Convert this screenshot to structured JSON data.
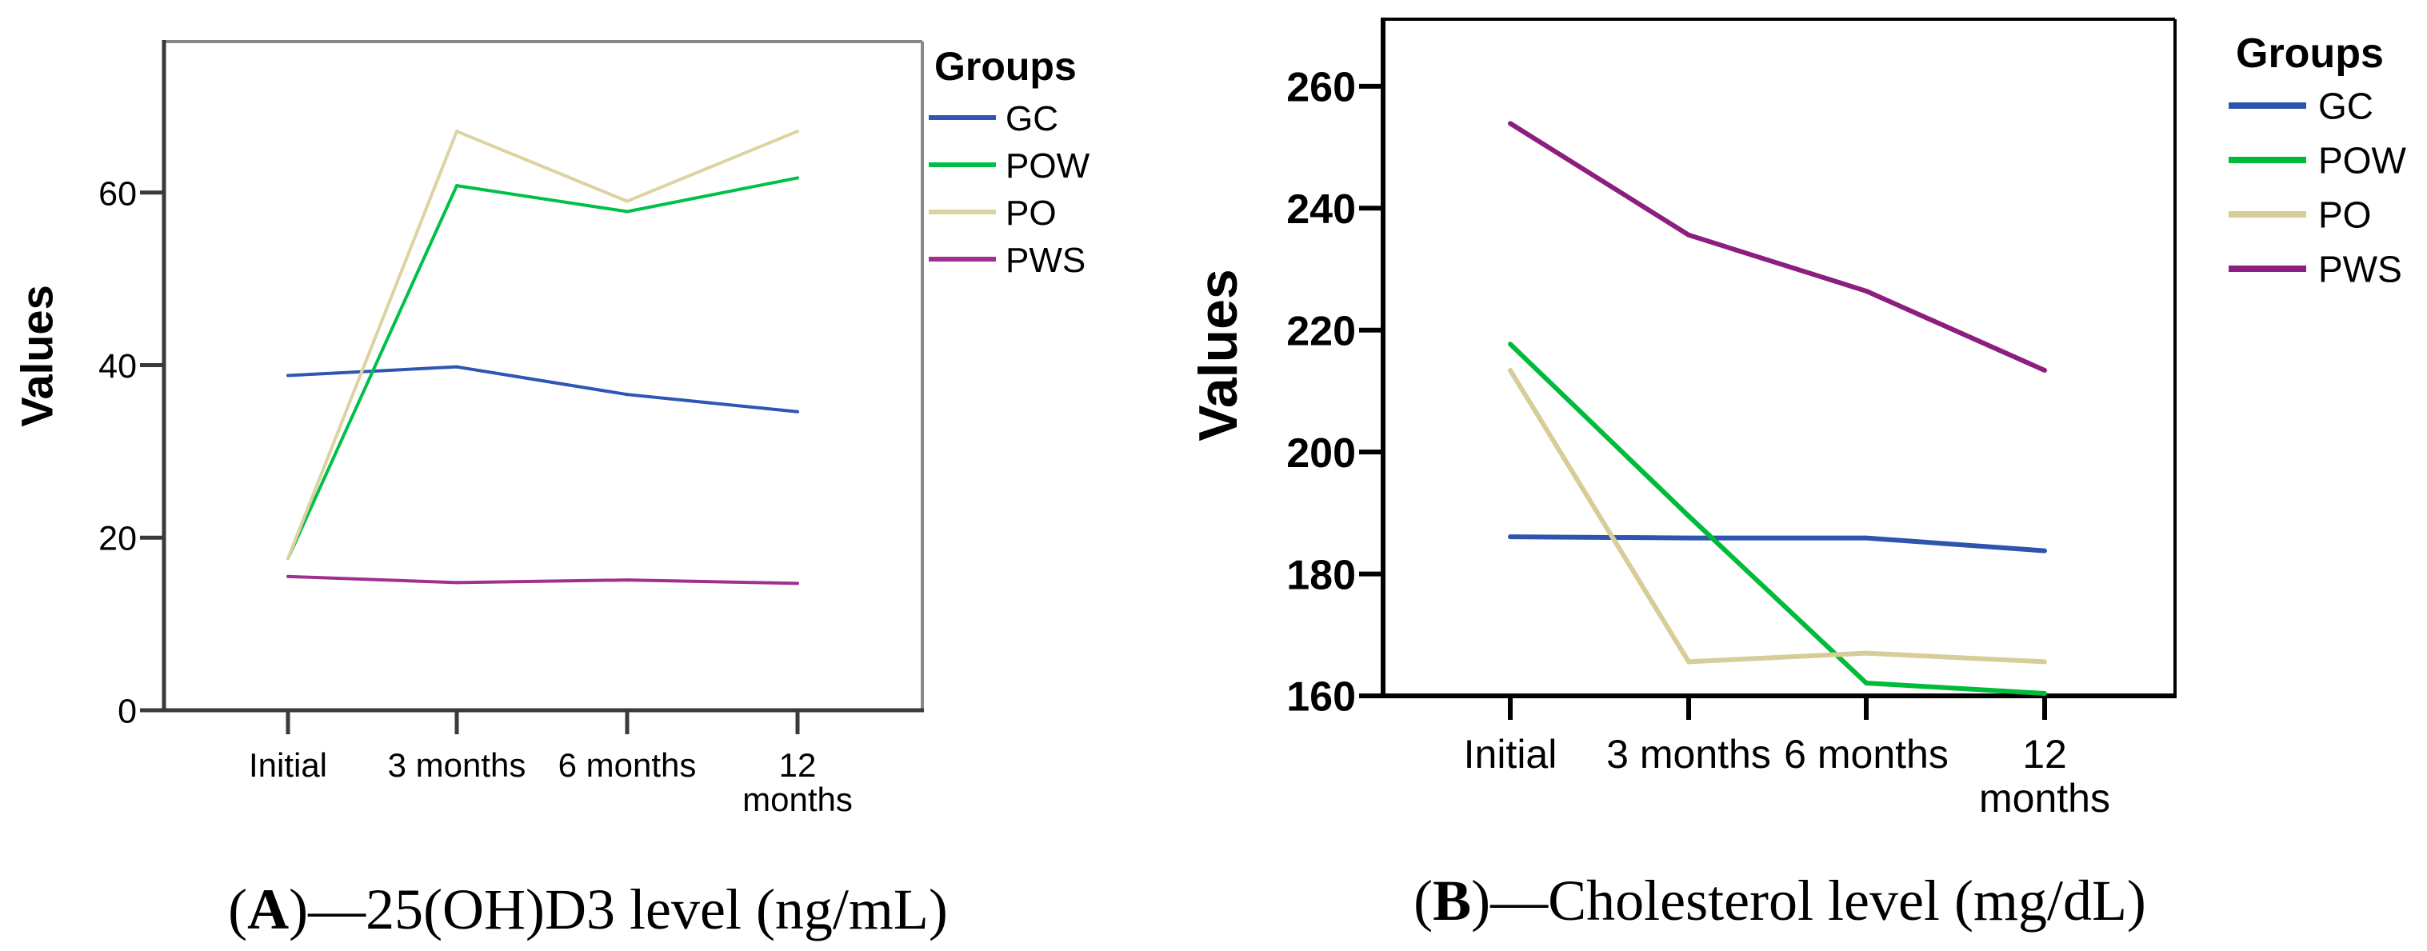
{
  "chart_data": [
    {
      "type": "line",
      "caption_letter": "A",
      "caption_text": "25(OH)D3 level (ng/mL)",
      "caption_dash": "—",
      "xlabel": "",
      "ylabel": "Values",
      "categories": [
        "Initial",
        "3 months",
        "6 months",
        "12 months"
      ],
      "category_lines": [
        [
          "Initial"
        ],
        [
          "3 months"
        ],
        [
          "6 months"
        ],
        [
          "12",
          "months"
        ]
      ],
      "ylim": [
        0,
        77.5
      ],
      "yticks": [
        0,
        20,
        40,
        60
      ],
      "grid": false,
      "legend_title": "Groups",
      "legend_position": "right",
      "series": [
        {
          "name": "GC",
          "color": "#2f55b5",
          "values": [
            38.8,
            39.8,
            36.6,
            34.6
          ]
        },
        {
          "name": "POW",
          "color": "#00c04a",
          "values": [
            17.6,
            60.8,
            57.8,
            61.7
          ]
        },
        {
          "name": "PO",
          "color": "#dcd3a0",
          "values": [
            17.6,
            67.1,
            59.0,
            67.1
          ]
        },
        {
          "name": "PWS",
          "color": "#a0308f",
          "values": [
            15.5,
            14.8,
            15.1,
            14.7
          ]
        }
      ]
    },
    {
      "type": "line",
      "caption_letter": "B",
      "caption_text": "Cholesterol level (mg/dL)",
      "caption_dash": "—",
      "xlabel": "",
      "ylabel": "Values",
      "categories": [
        "Initial",
        "3 months",
        "6 months",
        "12 months"
      ],
      "category_lines": [
        [
          "Initial"
        ],
        [
          "3 months"
        ],
        [
          "6 months"
        ],
        [
          "12",
          "months"
        ]
      ],
      "ylim": [
        160,
        271
      ],
      "yticks": [
        160,
        180,
        200,
        220,
        240,
        260
      ],
      "grid": false,
      "legend_title": "Groups",
      "legend_position": "right",
      "series": [
        {
          "name": "GC",
          "color": "#2d55ad",
          "values": [
            186.1,
            185.9,
            185.9,
            183.8
          ]
        },
        {
          "name": "POW",
          "color": "#00bb3a",
          "values": [
            217.7,
            189.5,
            162.1,
            160.4
          ]
        },
        {
          "name": "PO",
          "color": "#d6cd98",
          "values": [
            213.4,
            165.6,
            167.0,
            165.6
          ]
        },
        {
          "name": "PWS",
          "color": "#8b1e7e",
          "values": [
            253.9,
            235.6,
            226.4,
            213.4
          ]
        }
      ]
    }
  ]
}
